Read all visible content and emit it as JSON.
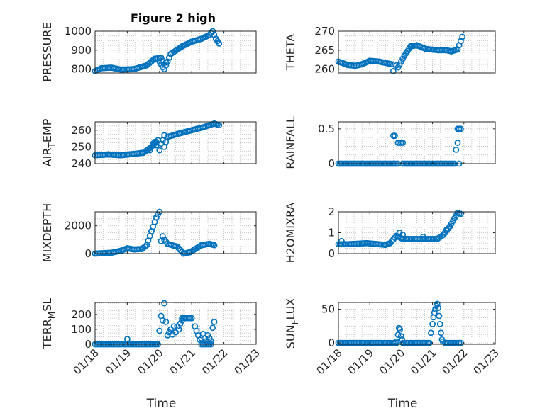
{
  "figure_title": "Figure 2 high",
  "colors": {
    "marker": "#0072BD",
    "axis": "#262626"
  },
  "chart_data": [
    {
      "type": "scatter",
      "name": "pressure-plot",
      "ylabel": "PRESSURE",
      "xlim": [
        0,
        5
      ],
      "ylim": [
        780,
        1000
      ],
      "yticks": [
        800,
        900,
        1000
      ],
      "ytick_labels": [
        "800",
        "900",
        "1000"
      ],
      "xticks": [
        0,
        1,
        2,
        3,
        4,
        5
      ],
      "xtick_labels": [
        "",
        "",
        "",
        "",
        "",
        ""
      ],
      "segments": [
        [
          0,
          790,
          0.2,
          805
        ],
        [
          0.2,
          805,
          0.5,
          808
        ],
        [
          0.5,
          808,
          0.8,
          798
        ],
        [
          0.8,
          798,
          1.2,
          800
        ],
        [
          1.2,
          800,
          1.6,
          820
        ],
        [
          1.6,
          820,
          1.85,
          855
        ],
        [
          1.85,
          855,
          2.05,
          860
        ],
        [
          2.2,
          820,
          2.35,
          880
        ],
        [
          2.35,
          880,
          2.7,
          920
        ],
        [
          2.7,
          920,
          3.0,
          945
        ],
        [
          3.0,
          945,
          3.3,
          960
        ],
        [
          3.3,
          960,
          3.55,
          980
        ],
        [
          3.55,
          980,
          3.65,
          1000
        ],
        [
          3.65,
          1000,
          3.75,
          960
        ],
        [
          3.75,
          960,
          3.85,
          935
        ]
      ],
      "points": [
        [
          2.0,
          840
        ],
        [
          2.05,
          825
        ],
        [
          2.1,
          810
        ],
        [
          2.15,
          800
        ],
        [
          2.1,
          845
        ],
        [
          2.2,
          835
        ]
      ]
    },
    {
      "type": "scatter",
      "name": "theta-plot",
      "ylabel": "THETA",
      "xlim": [
        0,
        5
      ],
      "ylim": [
        259,
        270
      ],
      "yticks": [
        260,
        265,
        270
      ],
      "ytick_labels": [
        "260",
        "265",
        "270"
      ],
      "xticks": [
        0,
        1,
        2,
        3,
        4,
        5
      ],
      "xtick_labels": [
        "",
        "",
        "",
        "",
        "",
        ""
      ],
      "segments": [
        [
          0,
          262,
          0.3,
          261.1
        ],
        [
          0.3,
          261.1,
          0.55,
          260.9
        ],
        [
          0.55,
          260.9,
          0.75,
          261.3
        ],
        [
          0.75,
          261.3,
          1.0,
          262.2
        ],
        [
          1.0,
          262.2,
          1.3,
          262.0
        ],
        [
          1.3,
          262.0,
          1.7,
          261.3
        ],
        [
          1.9,
          260.5,
          2.1,
          263.5
        ],
        [
          2.1,
          263.5,
          2.3,
          266.0
        ],
        [
          2.3,
          266.0,
          2.5,
          266.3
        ],
        [
          2.5,
          266.3,
          2.8,
          265.3
        ],
        [
          2.8,
          265.3,
          3.2,
          265.0
        ],
        [
          3.2,
          265.0,
          3.45,
          265.0
        ],
        [
          3.45,
          265.0,
          3.6,
          264.7
        ],
        [
          3.6,
          264.7,
          3.8,
          265.2
        ],
        [
          3.8,
          265.2,
          3.95,
          268.5
        ]
      ],
      "points": [
        [
          1.75,
          259.5
        ],
        [
          1.85,
          261.0
        ]
      ]
    },
    {
      "type": "scatter",
      "name": "air-temp-plot",
      "ylabel": "AIR",
      "ylabel_sub": "T",
      "ylabel_post": "EMP",
      "xlim": [
        0,
        5
      ],
      "ylim": [
        240,
        265
      ],
      "yticks": [
        240,
        250,
        260
      ],
      "ytick_labels": [
        "240",
        "250",
        "260"
      ],
      "xticks": [
        0,
        1,
        2,
        3,
        4,
        5
      ],
      "xtick_labels": [
        "",
        "",
        "",
        "",
        "",
        ""
      ],
      "segments": [
        [
          0,
          245,
          0.4,
          245.5
        ],
        [
          0.4,
          245.5,
          0.8,
          245
        ],
        [
          0.8,
          245,
          1.2,
          245.8
        ],
        [
          1.2,
          245.8,
          1.5,
          246.5
        ],
        [
          1.5,
          246.5,
          1.75,
          250
        ],
        [
          1.75,
          250,
          1.95,
          254
        ],
        [
          2.15,
          250,
          2.25,
          256
        ],
        [
          2.25,
          256,
          2.6,
          258
        ],
        [
          2.6,
          258,
          3.0,
          260
        ],
        [
          3.0,
          260,
          3.4,
          262
        ],
        [
          3.4,
          262,
          3.7,
          264
        ],
        [
          3.7,
          264,
          3.85,
          263
        ]
      ],
      "points": [
        [
          1.7,
          248
        ],
        [
          1.8,
          252
        ],
        [
          1.85,
          253
        ],
        [
          1.9,
          251
        ],
        [
          2.0,
          248
        ],
        [
          2.05,
          252
        ],
        [
          2.1,
          254
        ],
        [
          2.15,
          257
        ]
      ]
    },
    {
      "type": "scatter",
      "name": "rainfall-plot",
      "ylabel": "RAINFALL",
      "xlim": [
        0,
        5
      ],
      "ylim": [
        0,
        0.6
      ],
      "yticks": [
        0,
        0.5
      ],
      "ytick_labels": [
        "0",
        "0.5"
      ],
      "xticks": [
        0,
        1,
        2,
        3,
        4,
        5
      ],
      "xtick_labels": [
        "",
        "",
        "",
        "",
        "",
        ""
      ],
      "segments": [
        [
          0,
          0,
          1.85,
          0
        ],
        [
          2.05,
          0,
          3.7,
          0
        ]
      ],
      "points": [
        [
          1.75,
          0.4
        ],
        [
          1.8,
          0.4
        ],
        [
          1.9,
          0.3
        ],
        [
          1.95,
          0.3
        ],
        [
          2.0,
          0.3
        ],
        [
          2.05,
          0.3
        ],
        [
          1.9,
          0
        ],
        [
          3.75,
          0.2
        ],
        [
          3.8,
          0.3
        ],
        [
          3.8,
          0.5
        ],
        [
          3.85,
          0.5
        ],
        [
          3.9,
          0.5
        ],
        [
          3.85,
          0
        ]
      ]
    },
    {
      "type": "scatter",
      "name": "mixdepth-plot",
      "ylabel": "MIXDEPTH",
      "xlim": [
        0,
        5
      ],
      "ylim": [
        0,
        3000
      ],
      "yticks": [
        0,
        2000
      ],
      "ytick_labels": [
        "0",
        "2000"
      ],
      "xticks": [
        0,
        1,
        2,
        3,
        4,
        5
      ],
      "xtick_labels": [
        "",
        "",
        "",
        "",
        "",
        ""
      ],
      "segments": [
        [
          0,
          0,
          0.5,
          60
        ],
        [
          0.5,
          60,
          0.8,
          200
        ],
        [
          0.8,
          200,
          1.0,
          380
        ],
        [
          1.0,
          380,
          1.2,
          300
        ],
        [
          1.2,
          300,
          1.45,
          330
        ],
        [
          1.45,
          330,
          1.6,
          600
        ],
        [
          1.6,
          600,
          1.75,
          1600
        ],
        [
          1.75,
          1600,
          1.9,
          2600
        ],
        [
          1.9,
          2600,
          2.0,
          3000
        ],
        [
          2.25,
          700,
          2.55,
          500
        ],
        [
          2.55,
          500,
          2.75,
          0
        ],
        [
          2.75,
          0,
          2.95,
          100
        ],
        [
          2.95,
          100,
          3.3,
          600
        ],
        [
          3.3,
          600,
          3.55,
          700
        ],
        [
          3.55,
          700,
          3.7,
          600
        ]
      ],
      "points": [
        [
          2.05,
          900
        ],
        [
          2.1,
          1250
        ],
        [
          2.15,
          1000
        ],
        [
          2.2,
          850
        ]
      ]
    },
    {
      "type": "scatter",
      "name": "h2omixra-plot",
      "ylabel": "H2OMIXRA",
      "xlim": [
        0,
        5
      ],
      "ylim": [
        0,
        2
      ],
      "yticks": [
        0,
        1,
        2
      ],
      "ytick_labels": [
        "0",
        "1",
        "2"
      ],
      "xticks": [
        0,
        1,
        2,
        3,
        4,
        5
      ],
      "xtick_labels": [
        "",
        "",
        "",
        "",
        "",
        ""
      ],
      "segments": [
        [
          0,
          0.45,
          0.3,
          0.45
        ],
        [
          0.3,
          0.45,
          0.9,
          0.5
        ],
        [
          0.9,
          0.5,
          1.5,
          0.42
        ],
        [
          1.5,
          0.42,
          1.65,
          0.5
        ],
        [
          1.65,
          0.5,
          1.85,
          0.85
        ],
        [
          1.85,
          0.85,
          2.05,
          0.7
        ],
        [
          2.05,
          0.7,
          2.7,
          0.7
        ],
        [
          2.7,
          0.7,
          3.15,
          0.7
        ],
        [
          3.15,
          0.7,
          3.35,
          0.9
        ],
        [
          3.35,
          0.9,
          3.55,
          1.3
        ],
        [
          3.55,
          1.3,
          3.8,
          1.95
        ],
        [
          3.8,
          1.95,
          3.9,
          1.9
        ]
      ],
      "points": [
        [
          0.1,
          0.6
        ],
        [
          1.95,
          1.0
        ],
        [
          2.05,
          0.9
        ],
        [
          2.7,
          0.8
        ],
        [
          3.4,
          1.0
        ],
        [
          3.45,
          1.15
        ]
      ]
    },
    {
      "type": "scatter",
      "name": "terr-msl-plot",
      "ylabel": "TERR",
      "ylabel_sub": "M",
      "ylabel_post": "SL",
      "xlim": [
        0,
        5
      ],
      "ylim": [
        0,
        280
      ],
      "yticks": [
        0,
        100,
        200
      ],
      "ytick_labels": [
        "0",
        "100",
        "200"
      ],
      "xticks": [
        0,
        1,
        2,
        3,
        4,
        5
      ],
      "xtick_labels": [
        "01/18",
        "01/19",
        "01/20",
        "01/21",
        "01/22",
        "01/23"
      ],
      "xlabel": "Time",
      "segments": [
        [
          0,
          0,
          1.95,
          0
        ],
        [
          2.7,
          175,
          3.0,
          175
        ],
        [
          3.3,
          0,
          3.6,
          0
        ]
      ],
      "points": [
        [
          1.0,
          35
        ],
        [
          2.0,
          90
        ],
        [
          2.05,
          190
        ],
        [
          2.1,
          160
        ],
        [
          2.15,
          275
        ],
        [
          2.2,
          150
        ],
        [
          2.25,
          60
        ],
        [
          2.3,
          80
        ],
        [
          2.35,
          100
        ],
        [
          2.4,
          65
        ],
        [
          2.45,
          120
        ],
        [
          2.5,
          80
        ],
        [
          2.55,
          120
        ],
        [
          2.6,
          100
        ],
        [
          2.65,
          140
        ],
        [
          2.7,
          160
        ],
        [
          3.1,
          120
        ],
        [
          3.15,
          90
        ],
        [
          3.2,
          60
        ],
        [
          3.25,
          30
        ],
        [
          3.3,
          40
        ],
        [
          3.35,
          70
        ],
        [
          3.4,
          40
        ],
        [
          3.45,
          20
        ],
        [
          3.5,
          60
        ],
        [
          3.55,
          40
        ],
        [
          3.6,
          20
        ],
        [
          3.65,
          110
        ],
        [
          3.7,
          150
        ]
      ]
    },
    {
      "type": "scatter",
      "name": "sun-flux-plot",
      "ylabel": "SUN",
      "ylabel_sub": "F",
      "ylabel_post": "LUX",
      "xlim": [
        0,
        5
      ],
      "ylim": [
        -2,
        60
      ],
      "yticks": [
        0,
        50
      ],
      "ytick_labels": [
        "0",
        "50"
      ],
      "xticks": [
        0,
        1,
        2,
        3,
        4,
        5
      ],
      "xtick_labels": [
        "01/18",
        "01/19",
        "01/20",
        "01/21",
        "01/22",
        "01/23"
      ],
      "xlabel": "Time",
      "segments": [
        [
          0,
          0,
          1.85,
          0
        ],
        [
          2.05,
          0,
          2.9,
          0
        ],
        [
          3.4,
          0,
          3.9,
          0
        ]
      ],
      "points": [
        [
          1.85,
          2
        ],
        [
          1.9,
          12
        ],
        [
          1.93,
          22
        ],
        [
          1.96,
          20
        ],
        [
          2.0,
          10
        ],
        [
          2.03,
          5
        ],
        [
          2.95,
          15
        ],
        [
          3.0,
          28
        ],
        [
          3.03,
          38
        ],
        [
          3.06,
          45
        ],
        [
          3.09,
          50
        ],
        [
          3.12,
          55
        ],
        [
          3.15,
          58
        ],
        [
          3.18,
          52
        ],
        [
          3.21,
          40
        ],
        [
          3.24,
          28
        ],
        [
          3.27,
          15
        ],
        [
          3.3,
          5
        ],
        [
          3.33,
          2
        ]
      ]
    }
  ]
}
